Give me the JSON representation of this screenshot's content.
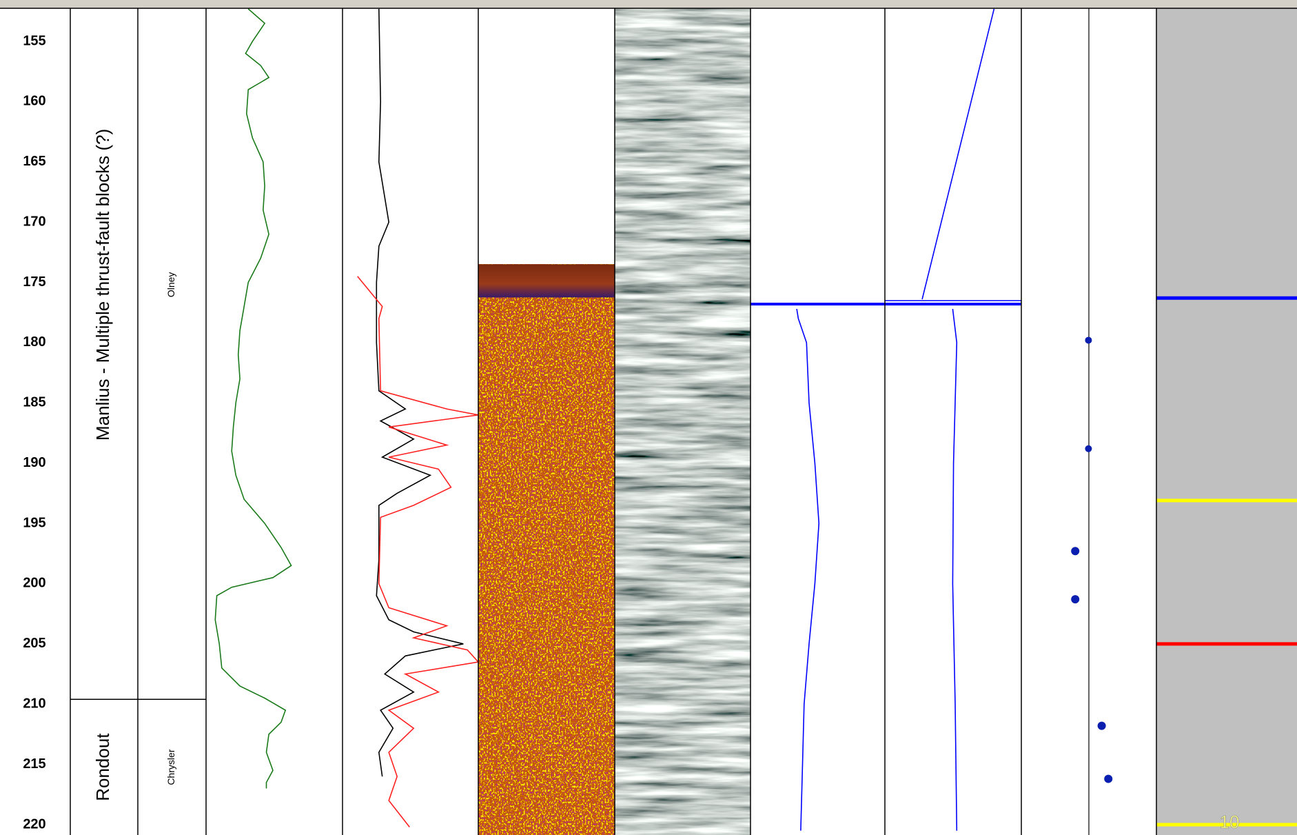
{
  "chart_data": {
    "type": "well-log",
    "ylim": [
      152.25,
      220.86
    ],
    "yticks": [
      155,
      160,
      165,
      170,
      175,
      180,
      185,
      190,
      195,
      200,
      205,
      210,
      215,
      220
    ],
    "formations": [
      "Manlius - Multiple thrust-fault blocks (?)",
      "Rondout"
    ],
    "members": [
      "Olney",
      "Chrysler"
    ],
    "boundaries": [
      209.6
    ],
    "curve_tracks": [
      {
        "xlim": [
          0,
          100
        ],
        "series": [
          {
            "color": "#1a7a1a",
            "depth": [
              152.3,
              153.5,
              155,
              156,
              157,
              158,
              159,
              161,
              163,
              165,
              167,
              169,
              171,
              173,
              175,
              177,
              179,
              181,
              183,
              185,
              187,
              189,
              191,
              193,
              195,
              197,
              198.5,
              199.5,
              200.3,
              201,
              203,
              205,
              207,
              208.5,
              209.5,
              210.5,
              211.5,
              212.5,
              214,
              215.5,
              216.5,
              217
            ],
            "values": [
              30.9,
              43,
              34,
              29,
              40,
              46,
              30.9,
              29.7,
              34,
              41.8,
              43,
              41.8,
              46,
              40,
              30.9,
              27.9,
              24.8,
              23.6,
              24.8,
              21.8,
              20,
              18.8,
              21.8,
              27.9,
              43,
              55,
              62.4,
              49,
              18.8,
              7.9,
              6.7,
              9.7,
              11.5,
              24.8,
              43,
              58.2,
              55,
              46,
              44.2,
              49,
              44.2,
              44.2
            ]
          }
        ]
      },
      {
        "xlim": [
          0,
          100
        ],
        "series": [
          {
            "color": "#000000",
            "depth": [
              152.3,
              160,
              165,
              170,
              172,
              175,
              180,
              184,
              185.5,
              186.5,
              188,
              189.5,
              191,
              192.5,
              193.5,
              198,
              201,
              203,
              204,
              205,
              206,
              207.5,
              209,
              210.5,
              212,
              214,
              216
            ],
            "values": [
              26.8,
              28,
              26.8,
              34.1,
              26.8,
              25,
              25,
              26.8,
              46.3,
              28,
              52.4,
              29.3,
              64.6,
              40.2,
              26.8,
              26.8,
              25,
              34.1,
              52.4,
              89,
              46.3,
              31.1,
              52.4,
              28,
              37.2,
              26.8,
              29.3
            ]
          },
          {
            "color": "#ff2020",
            "depth": [
              174.5,
              176,
              177,
              178,
              184,
              185.5,
              186,
              187,
              188.5,
              189.5,
              190.5,
              192,
              193.5,
              194.5,
              200,
              202,
              203.5,
              204.5,
              205.5,
              206.5,
              207.5,
              209,
              210.5,
              212,
              214,
              216,
              218,
              220.2
            ],
            "values": [
              11,
              22,
              29.3,
              26.8,
              28,
              76.8,
              100,
              34.1,
              76.8,
              34.1,
              70.7,
              79.9,
              52.4,
              28,
              26.8,
              34.1,
              76.8,
              52.4,
              92,
              100,
              46.3,
              70.7,
              34.1,
              52.4,
              34.1,
              40.2,
              34.1,
              49.4
            ]
          }
        ]
      },
      {
        "xlim": [
          0,
          100
        ],
        "series": [
          {
            "color": "#0000ff",
            "depth": [
              177.2,
              178,
              180,
              185,
              190,
              195,
              200,
              205,
              210,
              215,
              220.5
            ],
            "values": [
              34.4,
              35.6,
              41.7,
              43.6,
              47.9,
              50.9,
              47.9,
              43.6,
              39.9,
              38.7,
              37.4
            ]
          }
        ]
      },
      {
        "xlim": [
          0,
          100
        ],
        "series": [
          {
            "color": "#0000ff",
            "depth": [
              152.3,
              176.4
            ],
            "values": [
              80,
              27.3
            ]
          },
          {
            "color": "#0000ff",
            "depth": [
              177.2,
              180,
              190,
              200,
              210,
              220.5
            ],
            "values": [
              49.7,
              52.7,
              50.3,
              49.7,
              51.5,
              52.7
            ]
          }
        ]
      }
    ],
    "event_depth": 176.8,
    "event_color": "#0000ff",
    "core_image_top": 173.5,
    "dips": {
      "xlim": [
        0,
        100
      ],
      "color": "#0a1fb0",
      "depth": [
        179.8,
        188.8,
        197.3,
        201.3,
        211.8,
        216.2
      ],
      "values": [
        49.7,
        49.7,
        39.9,
        39.9,
        59.5,
        64.4
      ]
    },
    "markers": [
      {
        "depth": 176.3,
        "color": "#0000ff"
      },
      {
        "depth": 193.1,
        "color": "#ffff00"
      },
      {
        "depth": 205.0,
        "color": "#ff0000"
      },
      {
        "depth": 220.0,
        "color": "#ffff00",
        "label": "10"
      }
    ]
  }
}
